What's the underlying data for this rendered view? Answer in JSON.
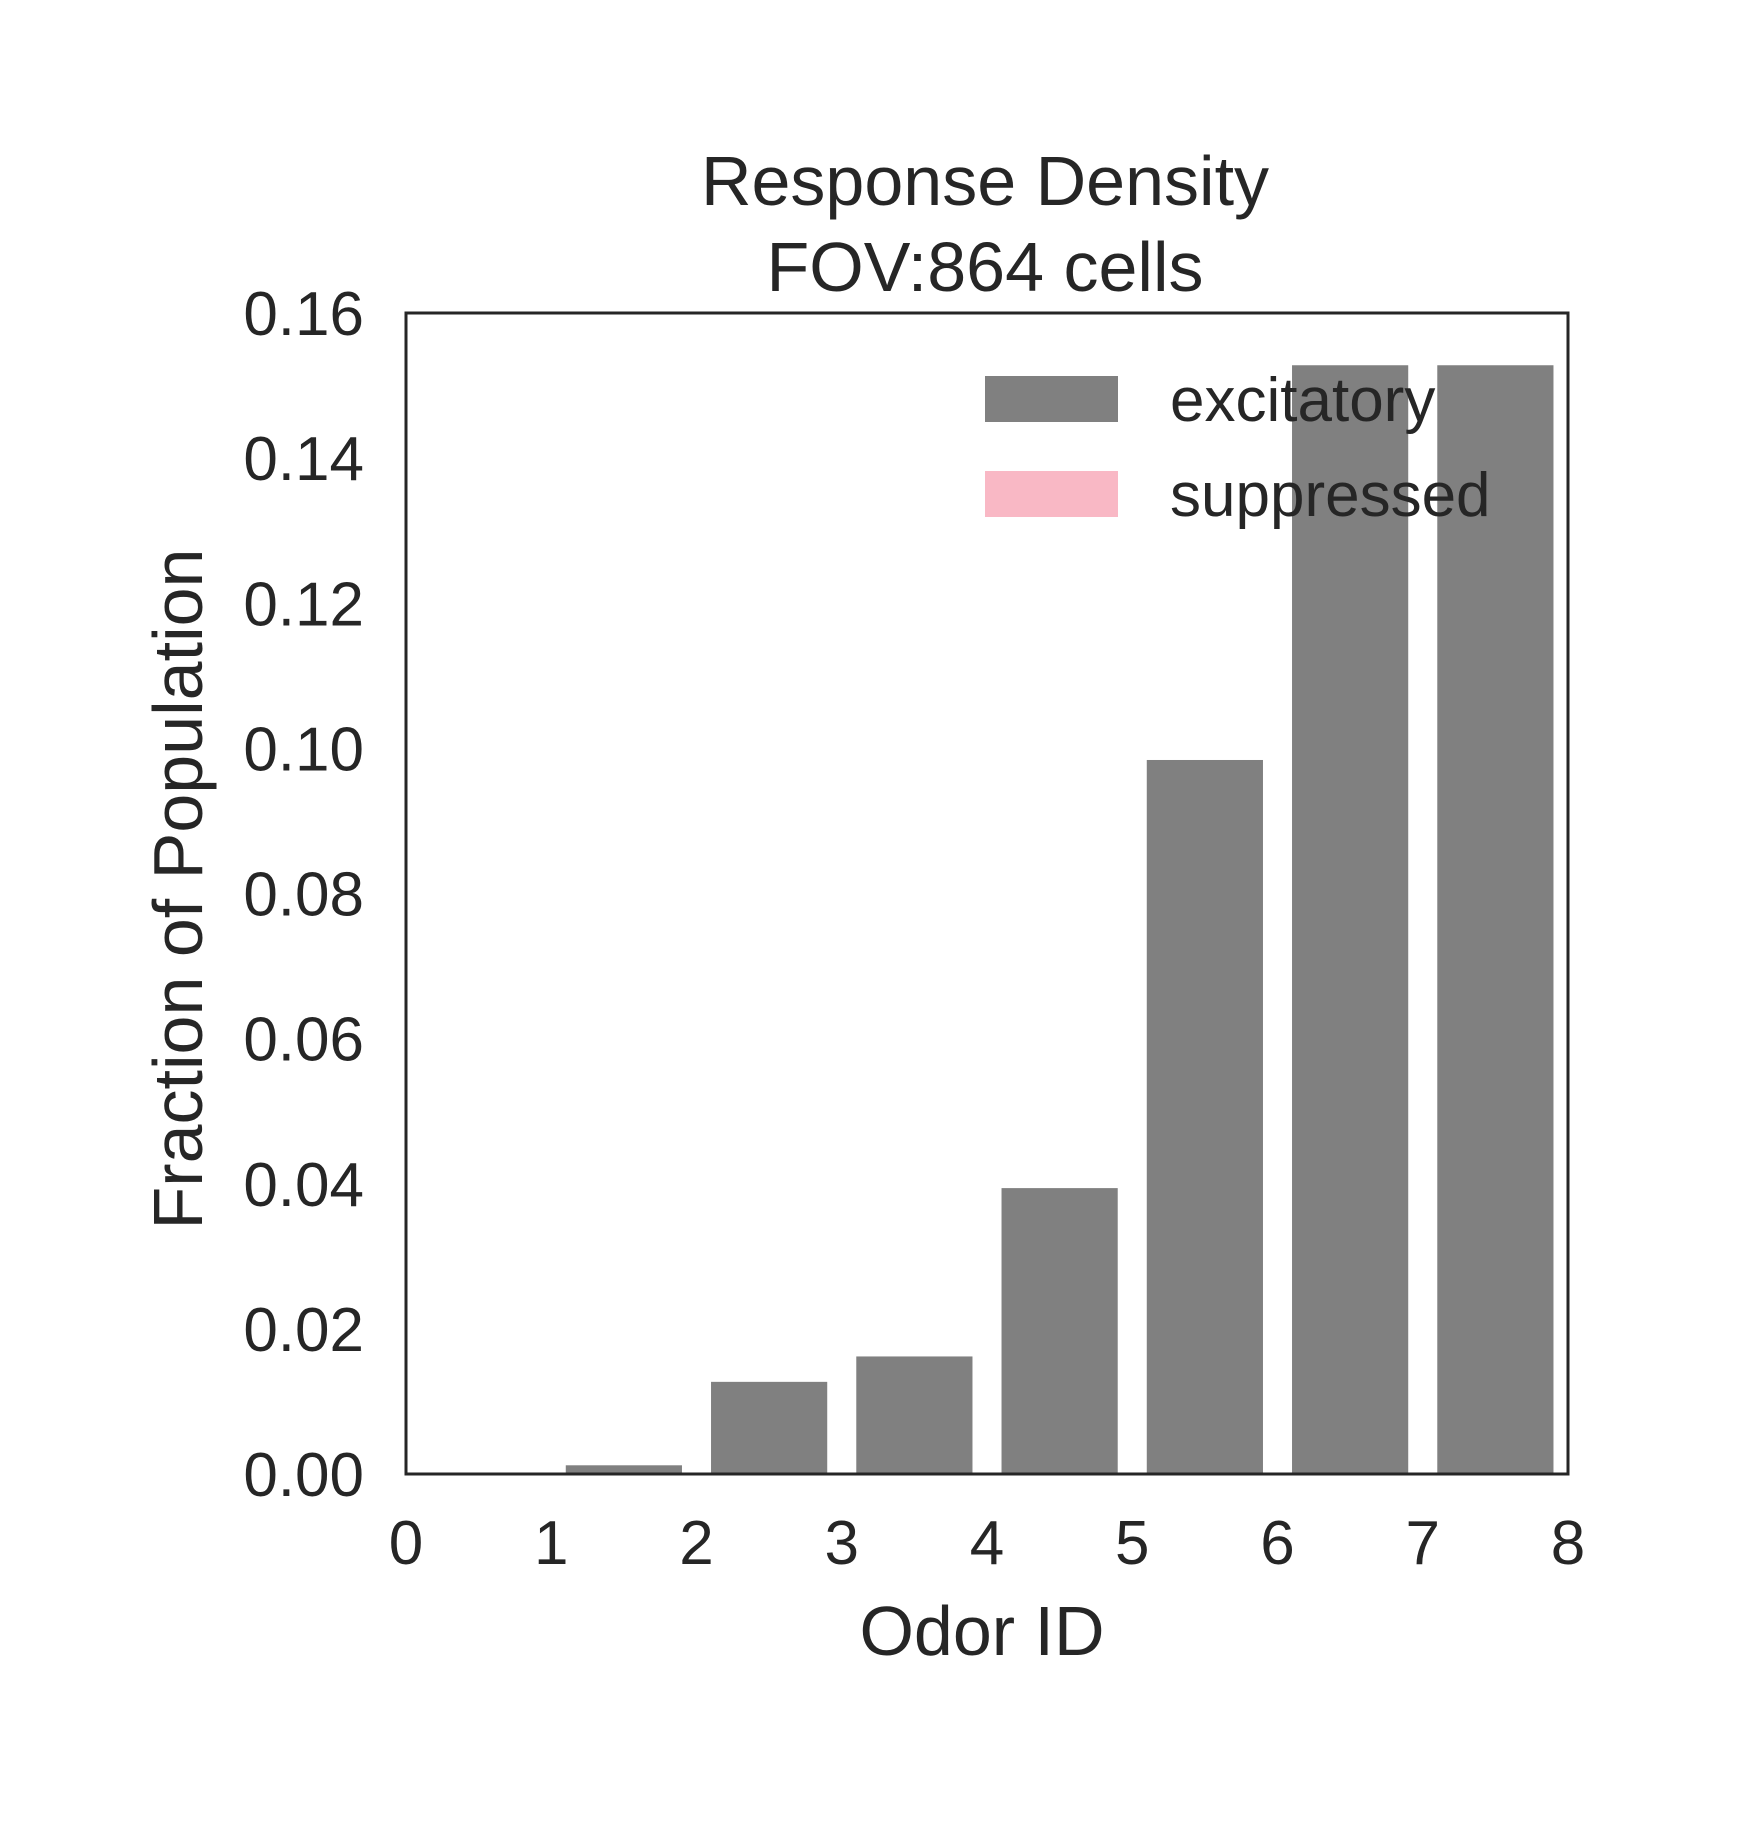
{
  "chart_data": {
    "type": "bar",
    "title": "Response Density",
    "subtitle": "FOV:864 cells",
    "xlabel": "Odor ID",
    "ylabel": "Fraction of Population",
    "xlim": [
      0,
      8
    ],
    "ylim": [
      0,
      0.16
    ],
    "xticks": [
      "0",
      "1",
      "2",
      "3",
      "4",
      "5",
      "6",
      "7",
      "8"
    ],
    "yticks": [
      "0.00",
      "0.02",
      "0.04",
      "0.06",
      "0.08",
      "0.10",
      "0.12",
      "0.14",
      "0.16"
    ],
    "grid": false,
    "legend_position": "top-right",
    "bar_width": 0.8,
    "series": [
      {
        "name": "excitatory",
        "color": "#808080",
        "x": [
          0.5,
          1.5,
          2.5,
          3.5,
          4.5,
          5.5,
          6.5,
          7.5
        ],
        "values": [
          0.0,
          0.0012,
          0.0127,
          0.0162,
          0.0394,
          0.0984,
          0.1528,
          0.1528
        ]
      },
      {
        "name": "suppressed",
        "color": "#f9b8c5",
        "x": [
          0.5,
          1.5,
          2.5,
          3.5,
          4.5,
          5.5,
          6.5,
          7.5
        ],
        "values": [
          0,
          0,
          0,
          0,
          0,
          0,
          0,
          0
        ]
      }
    ]
  }
}
